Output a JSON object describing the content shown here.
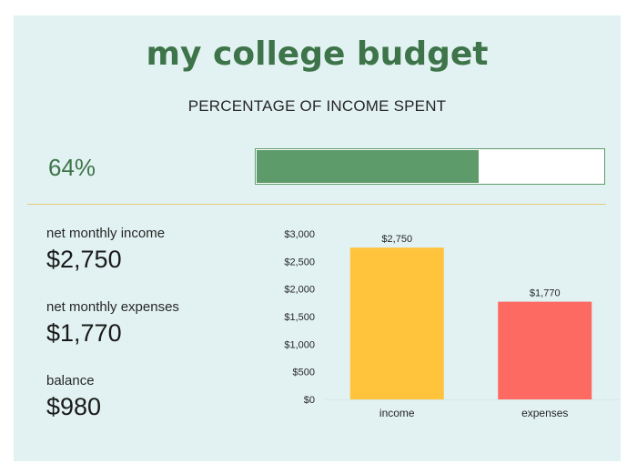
{
  "header": {
    "title": "my college budget",
    "subtitle": "PERCENTAGE OF INCOME SPENT"
  },
  "progress": {
    "percent_label": "64%",
    "fraction": 0.64,
    "fill_color": "#5e9b6b"
  },
  "summary": {
    "income_label": "net monthly income",
    "income_value": "$2,750",
    "expenses_label": "net monthly expenses",
    "expenses_value": "$1,770",
    "balance_label": "balance",
    "balance_value": "$980"
  },
  "chart_data": {
    "type": "bar",
    "categories": [
      "income",
      "expenses"
    ],
    "values": [
      2750,
      1770
    ],
    "data_labels": [
      "$2,750",
      "$1,770"
    ],
    "bar_colors": [
      "#ffc33c",
      "#fd6a62"
    ],
    "ylim": [
      0,
      3000
    ],
    "yticks": [
      0,
      500,
      1000,
      1500,
      2000,
      2500,
      3000
    ],
    "ytick_labels": [
      "$0",
      "$500",
      "$1,000",
      "$1,500",
      "$2,000",
      "$2,500",
      "$3,000"
    ],
    "grid": false,
    "legend": "none"
  }
}
